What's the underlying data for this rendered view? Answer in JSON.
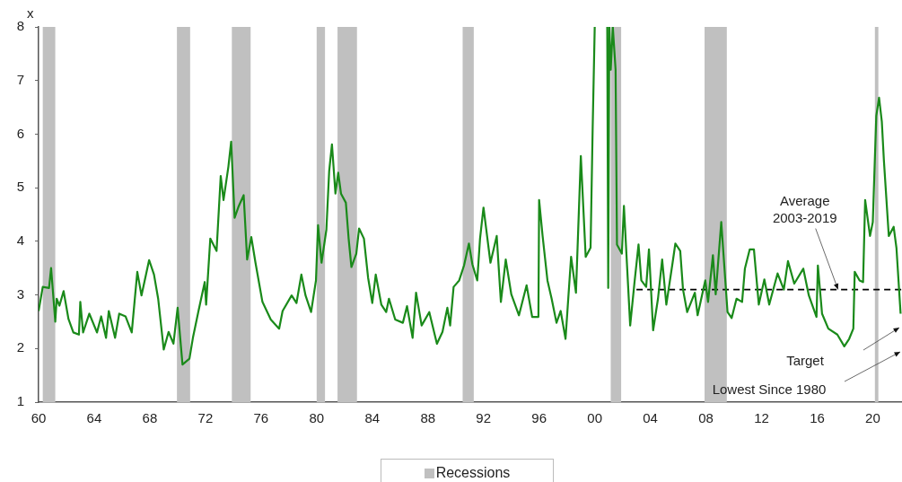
{
  "chart_data": {
    "type": "line",
    "ylabel": "x",
    "xlim": [
      1960,
      2022.1
    ],
    "xticks": [
      {
        "value": 1960,
        "label": "60"
      },
      {
        "value": 1964,
        "label": "64"
      },
      {
        "value": 1968,
        "label": "68"
      },
      {
        "value": 1972,
        "label": "72"
      },
      {
        "value": 1976,
        "label": "76"
      },
      {
        "value": 1980,
        "label": "80"
      },
      {
        "value": 1984,
        "label": "84"
      },
      {
        "value": 1988,
        "label": "88"
      },
      {
        "value": 1992,
        "label": "92"
      },
      {
        "value": 1996,
        "label": "96"
      },
      {
        "value": 2000,
        "label": "00"
      },
      {
        "value": 2004,
        "label": "04"
      },
      {
        "value": 2008,
        "label": "08"
      },
      {
        "value": 2012,
        "label": "12"
      },
      {
        "value": 2016,
        "label": "16"
      },
      {
        "value": 2020,
        "label": "20"
      }
    ],
    "ylim": [
      1,
      8
    ],
    "yticks": [
      1,
      2,
      3,
      4,
      5,
      6,
      7,
      8
    ],
    "series": [
      {
        "color": "#1a8a1a",
        "x": [
          1960.0,
          1960.3,
          1960.75,
          1960.9,
          1961.2,
          1961.3,
          1961.5,
          1961.8,
          1962.15,
          1962.5,
          1962.9,
          1963.0,
          1963.2,
          1963.65,
          1964.2,
          1964.5,
          1964.85,
          1965.05,
          1965.5,
          1965.8,
          1966.25,
          1966.7,
          1966.9,
          1967.1,
          1967.4,
          1967.95,
          1968.3,
          1968.6,
          1969.0,
          1969.35,
          1969.7,
          1970.0,
          1970.35,
          1970.85,
          1971.1,
          1971.5,
          1971.95,
          1972.05,
          1972.35,
          1972.8,
          1973.1,
          1973.3,
          1973.65,
          1973.85,
          1974.1,
          1974.4,
          1974.75,
          1975.0,
          1975.3,
          1975.6,
          1976.1,
          1976.7,
          1977.3,
          1977.55,
          1978.2,
          1978.55,
          1978.9,
          1979.2,
          1979.6,
          1979.95,
          1980.1,
          1980.35,
          1980.7,
          1980.9,
          1981.1,
          1981.35,
          1981.55,
          1981.75,
          1982.1,
          1982.3,
          1982.5,
          1982.85,
          1983.05,
          1983.4,
          1983.7,
          1984.0,
          1984.25,
          1984.65,
          1985.0,
          1985.2,
          1985.65,
          1986.2,
          1986.5,
          1986.9,
          1987.15,
          1987.55,
          1988.1,
          1988.65,
          1989.05,
          1989.4,
          1989.6,
          1989.85,
          1990.25,
          1990.6,
          1990.95,
          1991.2,
          1991.55,
          1991.75,
          1992.0,
          1992.5,
          1992.95,
          1993.25,
          1993.6,
          1994.0,
          1994.55,
          1995.1,
          1995.5,
          1995.95,
          1996.0,
          1996.25,
          1996.6,
          1996.9,
          1997.25,
          1997.55,
          1997.9,
          1998.3,
          1998.65,
          1999.0,
          1999.35,
          1999.7,
          1999.85,
          2000.0,
          2000.5,
          2000.9,
          2000.97,
          2001.05,
          2001.15,
          2001.3,
          2001.5,
          2001.6,
          2001.95,
          2002.1,
          2002.3,
          2002.55,
          2002.85,
          2003.15,
          2003.35,
          2003.7,
          2003.9,
          2004.2,
          2004.55,
          2004.85,
          2005.15,
          2005.6,
          2005.8,
          2006.15,
          2006.35,
          2006.65,
          2007.2,
          2007.4,
          2007.95,
          2008.15,
          2008.5,
          2008.7,
          2009.1,
          2009.55,
          2009.85,
          2010.2,
          2010.6,
          2010.8,
          2011.15,
          2011.45,
          2011.8,
          2012.2,
          2012.55,
          2013.15,
          2013.6,
          2013.9,
          2014.35,
          2015.0,
          2015.4,
          2015.95,
          2016.05,
          2016.35,
          2016.8,
          2017.45,
          2017.95,
          2018.3,
          2018.6,
          2018.7,
          2019.05,
          2019.3,
          2019.45,
          2019.8,
          2020.0,
          2020.25,
          2020.45,
          2020.65,
          2020.8,
          2021.15,
          2021.5,
          2021.7,
          2022.0
        ],
        "values": [
          2.7,
          3.15,
          3.13,
          3.5,
          2.5,
          2.93,
          2.8,
          3.07,
          2.55,
          2.3,
          2.26,
          2.87,
          2.3,
          2.65,
          2.3,
          2.6,
          2.2,
          2.7,
          2.2,
          2.65,
          2.6,
          2.3,
          2.87,
          3.43,
          2.99,
          3.65,
          3.38,
          2.93,
          1.98,
          2.31,
          2.09,
          2.76,
          1.7,
          1.81,
          2.2,
          2.7,
          3.24,
          2.82,
          4.05,
          3.82,
          5.22,
          4.77,
          5.39,
          5.86,
          4.44,
          4.66,
          4.86,
          3.66,
          4.08,
          3.6,
          2.87,
          2.54,
          2.37,
          2.7,
          2.99,
          2.85,
          3.38,
          2.99,
          2.68,
          3.27,
          4.3,
          3.6,
          4.22,
          5.31,
          5.81,
          4.89,
          5.28,
          4.89,
          4.72,
          4.05,
          3.52,
          3.77,
          4.24,
          4.05,
          3.32,
          2.85,
          3.38,
          2.82,
          2.68,
          2.93,
          2.54,
          2.48,
          2.79,
          2.2,
          3.04,
          2.43,
          2.68,
          2.09,
          2.31,
          2.76,
          2.43,
          3.15,
          3.27,
          3.55,
          3.96,
          3.57,
          3.27,
          4.05,
          4.63,
          3.6,
          4.1,
          2.87,
          3.66,
          3.01,
          2.62,
          3.18,
          2.59,
          2.59,
          4.77,
          4.1,
          3.27,
          2.93,
          2.48,
          2.7,
          2.18,
          3.71,
          3.04,
          5.59,
          3.71,
          3.88,
          6.09,
          8,
          null,
          8,
          3.13,
          8,
          7.2,
          8,
          7.2,
          3.94,
          3.77,
          4.66,
          3.66,
          2.43,
          3.21,
          3.94,
          3.27,
          3.15,
          3.85,
          2.34,
          2.93,
          3.66,
          2.82,
          3.6,
          3.96,
          3.82,
          3.1,
          2.68,
          3.04,
          2.62,
          3.27,
          2.87,
          3.74,
          3.01,
          4.36,
          2.68,
          2.57,
          2.93,
          2.87,
          3.49,
          3.85,
          3.85,
          2.82,
          3.29,
          2.82,
          3.4,
          3.1,
          3.63,
          3.21,
          3.49,
          2.99,
          2.59,
          3.55,
          2.65,
          2.37,
          2.26,
          2.04,
          2.18,
          2.37,
          3.43,
          3.27,
          3.24,
          4.77,
          4.1,
          4.36,
          6.34,
          6.68,
          6.23,
          5.5,
          4.1,
          4.27,
          3.88,
          2.65
        ]
      },
      {
        "type": "line",
        "color": "#000000",
        "line_style": "dashed",
        "x": [
          2003.0,
          2022.1
        ],
        "values": [
          3.1,
          3.1
        ]
      }
    ],
    "bands": [
      {
        "axis": "x",
        "from": 1960.3,
        "to": 1961.2,
        "label": "Recessions",
        "color": "#c0c0c0"
      },
      {
        "axis": "x",
        "from": 1969.95,
        "to": 1970.9,
        "color": "#c0c0c0"
      },
      {
        "axis": "x",
        "from": 1973.9,
        "to": 1975.25,
        "color": "#c0c0c0"
      },
      {
        "axis": "x",
        "from": 1980.0,
        "to": 1980.6,
        "color": "#c0c0c0"
      },
      {
        "axis": "x",
        "from": 1981.5,
        "to": 1982.9,
        "color": "#c0c0c0"
      },
      {
        "axis": "x",
        "from": 1990.5,
        "to": 1991.3,
        "color": "#c0c0c0"
      },
      {
        "axis": "x",
        "from": 2001.15,
        "to": 2001.9,
        "color": "#c0c0c0"
      },
      {
        "axis": "x",
        "from": 2007.9,
        "to": 2009.5,
        "color": "#c0c0c0"
      },
      {
        "axis": "x",
        "from": 2020.15,
        "to": 2020.4,
        "color": "#c0c0c0"
      }
    ],
    "annotations": [
      {
        "text": "Average 2003-2019",
        "x": 2017.5,
        "y": 3.1
      },
      "Target",
      "Lowest Since 1980"
    ],
    "legend": "bottom"
  }
}
